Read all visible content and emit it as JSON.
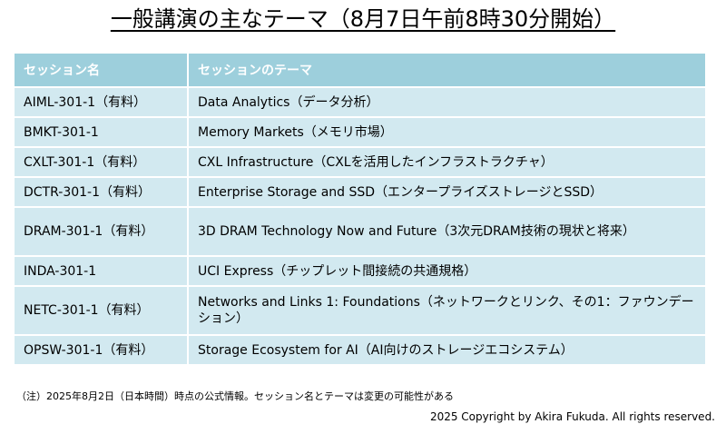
{
  "title": "一般講演の主なテーマ（8月7日午前8時30分開始）",
  "table": {
    "headers": [
      "セッション名",
      "セッションのテーマ"
    ],
    "rows": [
      {
        "session": "AIML-301-1（有料）",
        "theme": "Data Analytics（データ分析）"
      },
      {
        "session": "BMKT-301-1",
        "theme": "Memory Markets（メモリ市場）"
      },
      {
        "session": "CXLT-301-1（有料）",
        "theme": "CXL Infrastructure（CXLを活用したインフラストラクチャ）"
      },
      {
        "session": "DCTR-301-1（有料）",
        "theme": "Enterprise Storage and SSD（エンタープライズストレージとSSD）"
      },
      {
        "session": "DRAM-301-1（有料）",
        "theme": "3D DRAM Technology Now and Future（3次元DRAM技術の現状と将来）"
      },
      {
        "session": "INDA-301-1",
        "theme": "UCI Express（チップレット間接続の共通規格）"
      },
      {
        "session": "NETC-301-1（有料）",
        "theme": "Networks and Links 1: Foundations（ネットワークとリンク、その1：ファウンデーション）"
      },
      {
        "session": "OPSW-301-1（有料）",
        "theme": "Storage Ecosystem for AI（AI向けのストレージエコシステム）"
      }
    ]
  },
  "note": "（注）2025年8月2日（日本時間）時点の公式情報。セッション名とテーマは変更の可能性がある",
  "copyright": "2025 Copyright by Akira Fukuda. All rights reserved."
}
